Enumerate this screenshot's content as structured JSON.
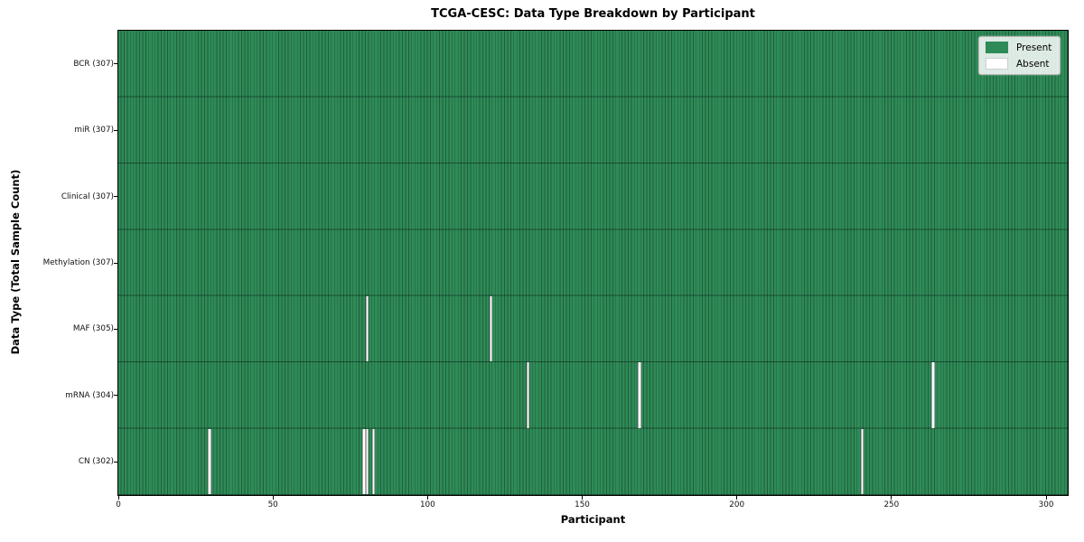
{
  "chart_data": {
    "type": "heatmap",
    "title": "TCGA-CESC: Data Type Breakdown by Participant",
    "xlabel": "Participant",
    "ylabel": "Data Type (Total Sample Count)",
    "n_participants": 307,
    "x_axis": {
      "min": 0,
      "max": 307,
      "ticks": [
        0,
        50,
        100,
        150,
        200,
        250,
        300
      ]
    },
    "rows": [
      {
        "label": "BCR (307)",
        "data_type": "BCR",
        "total_samples": 307,
        "absent_participants": []
      },
      {
        "label": "miR (307)",
        "data_type": "miR",
        "total_samples": 307,
        "absent_participants": []
      },
      {
        "label": "Clinical (307)",
        "data_type": "Clinical",
        "total_samples": 307,
        "absent_participants": []
      },
      {
        "label": "Methylation (307)",
        "data_type": "Methylation",
        "total_samples": 307,
        "absent_participants": []
      },
      {
        "label": "MAF (305)",
        "data_type": "MAF",
        "total_samples": 305,
        "absent_participants": [
          80,
          120
        ]
      },
      {
        "label": "mRNA (304)",
        "data_type": "mRNA",
        "total_samples": 304,
        "absent_participants": [
          132,
          168,
          263
        ]
      },
      {
        "label": "CN (302)",
        "data_type": "CN",
        "total_samples": 302,
        "absent_participants": [
          29,
          79,
          80,
          82,
          240
        ]
      }
    ],
    "legend": {
      "position": "upper right",
      "entries": [
        {
          "label": "Present",
          "color": "#2e8b57"
        },
        {
          "label": "Absent",
          "color": "#ffffff"
        }
      ]
    },
    "colors": {
      "present": "#2e8b57",
      "absent": "#ffffff",
      "cell_edge": "#215e3d",
      "row_separator": "rgba(0,0,0,0.42)",
      "background": "#ffffff"
    }
  }
}
